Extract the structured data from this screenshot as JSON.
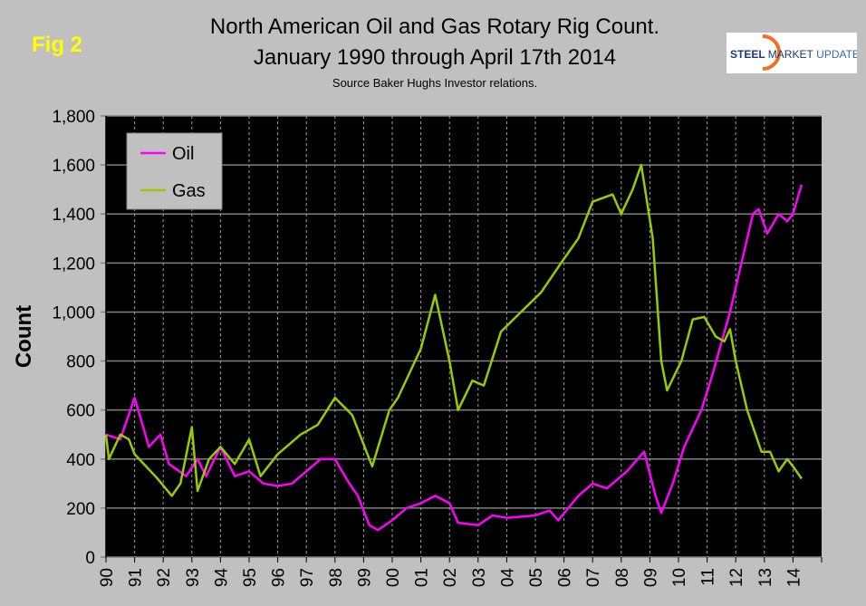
{
  "header": {
    "fig_label": "Fig 2",
    "title_line1": "North American Oil and Gas Rotary Rig Count.",
    "title_line2": "January 1990 through April 17th 2014",
    "source": "Source Baker Hughs Investor relations.",
    "logo_text_1": "STEEL",
    "logo_text_2": "MARKET",
    "logo_text_3": "UPDATE"
  },
  "chart_data": {
    "type": "line",
    "title": "North American Oil and Gas Rotary Rig Count. January 1990 through April 17th 2014",
    "xlabel": "",
    "ylabel": "Count",
    "ylim": [
      0,
      1800
    ],
    "xlim": [
      1990,
      2015
    ],
    "yticks": [
      0,
      200,
      400,
      600,
      800,
      1000,
      1200,
      1400,
      1600,
      1800
    ],
    "ytick_labels": [
      "0",
      "200",
      "400",
      "600",
      "800",
      "1,000",
      "1,200",
      "1,400",
      "1,600",
      "1,800"
    ],
    "xtick_labels": [
      "90",
      "91",
      "92",
      "93",
      "94",
      "95",
      "96",
      "97",
      "98",
      "99",
      "00",
      "01",
      "02",
      "03",
      "04",
      "05",
      "06",
      "07",
      "08",
      "09",
      "10",
      "11",
      "12",
      "13",
      "14"
    ],
    "grid": true,
    "legend": "top-left",
    "background": "#000000",
    "series": [
      {
        "name": "Oil",
        "color": "#ff00ff",
        "x": [
          1990,
          1990.5,
          1991,
          1991.5,
          1991.9,
          1992.2,
          1992.8,
          1993.2,
          1993.5,
          1994,
          1994.5,
          1995,
          1995.5,
          1996,
          1996.5,
          1997,
          1997.5,
          1998,
          1998.5,
          1998.8,
          1999.2,
          1999.5,
          2000,
          2000.5,
          2001,
          2001.5,
          2002,
          2002.3,
          2003,
          2003.5,
          2004,
          2005,
          2005.5,
          2005.8,
          2006.5,
          2007,
          2007.5,
          2008.2,
          2008.8,
          2009.2,
          2009.4,
          2009.8,
          2010.2,
          2010.8,
          2011.2,
          2011.8,
          2012,
          2012.6,
          2012.8,
          2013.1,
          2013.5,
          2013.8,
          2014,
          2014.3
        ],
        "values": [
          500,
          480,
          650,
          450,
          500,
          380,
          330,
          400,
          330,
          450,
          330,
          350,
          300,
          290,
          300,
          350,
          400,
          400,
          300,
          250,
          130,
          110,
          150,
          200,
          220,
          250,
          220,
          140,
          130,
          170,
          160,
          170,
          190,
          150,
          250,
          300,
          280,
          350,
          430,
          250,
          180,
          300,
          450,
          600,
          750,
          1000,
          1100,
          1400,
          1420,
          1320,
          1400,
          1370,
          1400,
          1520
        ]
      },
      {
        "name": "Gas",
        "color": "#99cc00",
        "x": [
          1990,
          1990.1,
          1990.5,
          1990.8,
          1991,
          1991.8,
          1992.3,
          1992.6,
          1993,
          1993.2,
          1993.6,
          1994,
          1994.5,
          1995,
          1995.4,
          1996,
          1996.8,
          1997.4,
          1998,
          1998.6,
          1999.3,
          1999.9,
          2000.2,
          2001,
          2001.5,
          2002,
          2002.3,
          2002.8,
          2003.2,
          2003.8,
          2004.5,
          2005.2,
          2005.9,
          2006.5,
          2007,
          2007.7,
          2008,
          2008.4,
          2008.7,
          2009.1,
          2009.4,
          2009.6,
          2010.1,
          2010.5,
          2010.9,
          2011.3,
          2011.6,
          2011.8,
          2012,
          2012.4,
          2012.9,
          2013.2,
          2013.5,
          2013.8,
          2014,
          2014.3
        ],
        "values": [
          500,
          400,
          500,
          480,
          420,
          320,
          250,
          300,
          530,
          270,
          400,
          450,
          380,
          480,
          330,
          420,
          500,
          540,
          650,
          580,
          370,
          600,
          650,
          850,
          1070,
          800,
          600,
          720,
          700,
          920,
          1000,
          1080,
          1200,
          1300,
          1450,
          1480,
          1400,
          1500,
          1600,
          1300,
          800,
          680,
          800,
          970,
          980,
          900,
          880,
          930,
          800,
          600,
          430,
          430,
          350,
          400,
          370,
          320
        ]
      }
    ]
  }
}
